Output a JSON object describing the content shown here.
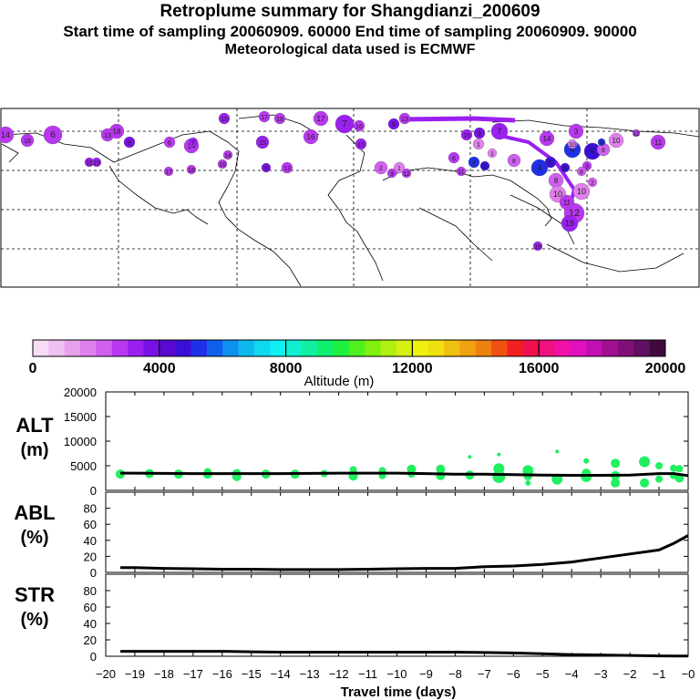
{
  "header": {
    "title": "Retroplume summary for Shangdianzi_200609",
    "sampling_line": "Start time of sampling 20060909. 60000     End time of sampling 20060909. 90000",
    "met_line": "Meteorological data used is ECMWF"
  },
  "colorbar": {
    "label": "Altitude (m)",
    "ticks": [
      "0",
      "4000",
      "8000",
      "12000",
      "16000",
      "20000"
    ],
    "colors": [
      "#f6dcf6",
      "#f0c0f0",
      "#e8a0ec",
      "#e080ec",
      "#d060f0",
      "#b838f0",
      "#9a20f0",
      "#7a10e8",
      "#5a0ad0",
      "#3a10d8",
      "#2030e8",
      "#1060f0",
      "#1090f0",
      "#10b8f0",
      "#10d8f0",
      "#10f0f0",
      "#10f0d0",
      "#10f0a0",
      "#10f070",
      "#20f040",
      "#50f020",
      "#80f010",
      "#b0f010",
      "#d8f010",
      "#f0f010",
      "#f0e010",
      "#f0c010",
      "#f0a010",
      "#f08010",
      "#f05010",
      "#f02020",
      "#f01050",
      "#f01080",
      "#f010a8",
      "#e010c0",
      "#c010b0",
      "#a01090",
      "#801078",
      "#601060",
      "#400a40"
    ]
  },
  "map_labels": [
    {
      "text": "14",
      "color": "#b838f0"
    },
    {
      "text": "16",
      "color": "#b838f0"
    },
    {
      "text": "18",
      "color": "#b838f0"
    },
    {
      "text": "17",
      "color": "#b838f0"
    },
    {
      "text": "15",
      "color": "#9a20f0"
    },
    {
      "text": "9",
      "color": "#7a10e8"
    },
    {
      "text": "13",
      "color": "#b838f0"
    },
    {
      "text": "6",
      "color": "#b838f0"
    },
    {
      "text": "7",
      "color": "#9a20f0"
    },
    {
      "text": "1",
      "color": "#e080ec"
    },
    {
      "text": "2",
      "color": "#d060f0"
    },
    {
      "text": "3",
      "color": "#b838f0"
    },
    {
      "text": "4",
      "color": "#2030e8"
    },
    {
      "text": "5",
      "color": "#3a10d8"
    },
    {
      "text": "8",
      "color": "#d060f0"
    },
    {
      "text": "10",
      "color": "#e080ec"
    },
    {
      "text": "11",
      "color": "#b838f0"
    },
    {
      "text": "12",
      "color": "#b838f0"
    },
    {
      "text": "19",
      "color": "#9a20f0"
    }
  ],
  "chart_data": [
    {
      "type": "scatter",
      "panel": "ALT",
      "ylabel": "ALT",
      "yunit": "(m)",
      "xlim": [
        -20,
        0
      ],
      "ylim": [
        0,
        20000
      ],
      "yticks": [
        "20000",
        "15000",
        "10000",
        "5000",
        "0"
      ],
      "mean_line": {
        "x": [
          -19.5,
          -19,
          -18,
          -17,
          -16,
          -15,
          -14,
          -13,
          -12,
          -11,
          -10,
          -9,
          -8,
          -7,
          -6,
          -5,
          -4,
          -3,
          -2,
          -1,
          -0.5,
          0
        ],
        "y": [
          3500,
          3500,
          3450,
          3400,
          3400,
          3400,
          3400,
          3450,
          3500,
          3500,
          3500,
          3400,
          3300,
          3300,
          3200,
          3100,
          3050,
          3050,
          3100,
          3400,
          3400,
          3000
        ]
      },
      "points": [
        {
          "x": -19.5,
          "y": 3300,
          "s": 5
        },
        {
          "x": -18.5,
          "y": 3400,
          "s": 5
        },
        {
          "x": -17.5,
          "y": 3300,
          "s": 5
        },
        {
          "x": -16.5,
          "y": 3800,
          "s": 4
        },
        {
          "x": -16.5,
          "y": 3300,
          "s": 5
        },
        {
          "x": -15.5,
          "y": 3400,
          "s": 5
        },
        {
          "x": -15.5,
          "y": 2800,
          "s": 5
        },
        {
          "x": -14.5,
          "y": 3300,
          "s": 5
        },
        {
          "x": -13.5,
          "y": 3300,
          "s": 5
        },
        {
          "x": -12.5,
          "y": 3400,
          "s": 4
        },
        {
          "x": -11.5,
          "y": 4200,
          "s": 4
        },
        {
          "x": -11.5,
          "y": 2900,
          "s": 5
        },
        {
          "x": -10.5,
          "y": 4000,
          "s": 4
        },
        {
          "x": -10.5,
          "y": 3000,
          "s": 4
        },
        {
          "x": -9.5,
          "y": 4300,
          "s": 5
        },
        {
          "x": -9.5,
          "y": 3300,
          "s": 4
        },
        {
          "x": -8.5,
          "y": 4300,
          "s": 5
        },
        {
          "x": -8.5,
          "y": 3000,
          "s": 5
        },
        {
          "x": -7.5,
          "y": 6800,
          "s": 2
        },
        {
          "x": -7.5,
          "y": 3100,
          "s": 5
        },
        {
          "x": -6.5,
          "y": 7300,
          "s": 2
        },
        {
          "x": -6.5,
          "y": 4400,
          "s": 6
        },
        {
          "x": -6.5,
          "y": 2800,
          "s": 7
        },
        {
          "x": -5.5,
          "y": 4000,
          "s": 6
        },
        {
          "x": -5.5,
          "y": 3000,
          "s": 5
        },
        {
          "x": -5.5,
          "y": 1500,
          "s": 3
        },
        {
          "x": -4.5,
          "y": 7900,
          "s": 2
        },
        {
          "x": -4.5,
          "y": 2300,
          "s": 6
        },
        {
          "x": -3.5,
          "y": 6000,
          "s": 3
        },
        {
          "x": -3.5,
          "y": 3500,
          "s": 5
        },
        {
          "x": -3.5,
          "y": 2800,
          "s": 6
        },
        {
          "x": -2.5,
          "y": 5500,
          "s": 5
        },
        {
          "x": -2.5,
          "y": 3000,
          "s": 5
        },
        {
          "x": -2.5,
          "y": 1500,
          "s": 5
        },
        {
          "x": -1.5,
          "y": 5800,
          "s": 6
        },
        {
          "x": -1.5,
          "y": 1500,
          "s": 5
        },
        {
          "x": -1,
          "y": 5000,
          "s": 4
        },
        {
          "x": -1,
          "y": 2300,
          "s": 4
        },
        {
          "x": -0.5,
          "y": 4500,
          "s": 4
        },
        {
          "x": -0.5,
          "y": 3000,
          "s": 4
        },
        {
          "x": -0.3,
          "y": 4400,
          "s": 4
        },
        {
          "x": -0.3,
          "y": 2500,
          "s": 5
        }
      ]
    },
    {
      "type": "line",
      "panel": "ABL",
      "ylabel": "ABL",
      "yunit": "(%)",
      "xlim": [
        -20,
        0
      ],
      "ylim": [
        0,
        100
      ],
      "yticks": [
        "80",
        "60",
        "40",
        "20",
        "0"
      ],
      "x": [
        -19.5,
        -19,
        -18,
        -17,
        -16,
        -15,
        -14,
        -13,
        -12,
        -11,
        -10,
        -9,
        -8,
        -7,
        -6,
        -5,
        -4,
        -3,
        -2,
        -1,
        -0.5,
        0
      ],
      "y": [
        6,
        6,
        5,
        4.5,
        4,
        4,
        3.5,
        3.5,
        3.5,
        4,
        4.5,
        5,
        5,
        7,
        8,
        10,
        13,
        18,
        23,
        28,
        36,
        46
      ]
    },
    {
      "type": "line",
      "panel": "STR",
      "ylabel": "STR",
      "yunit": "(%)",
      "xlim": [
        -20,
        0
      ],
      "ylim": [
        0,
        100
      ],
      "yticks": [
        "80",
        "60",
        "40",
        "20",
        "0"
      ],
      "x": [
        -19.5,
        -19,
        -18,
        -17,
        -16,
        -15,
        -14,
        -13,
        -12,
        -11,
        -10,
        -9,
        -8,
        -7,
        -6,
        -5,
        -4,
        -3,
        -2,
        -1,
        -0.5,
        0
      ],
      "y": [
        6,
        6,
        6,
        6,
        6,
        5.5,
        5,
        5,
        5,
        5,
        5,
        5,
        5,
        4.5,
        4,
        3,
        2,
        1.5,
        1,
        0.5,
        0.3,
        0.2
      ]
    }
  ],
  "x_axis": {
    "tick_labels": [
      "−20",
      "−19",
      "−18",
      "−17",
      "−16",
      "−15",
      "−14",
      "−13",
      "−12",
      "−11",
      "−10",
      "−9",
      "−8",
      "−7",
      "−6",
      "−5",
      "−4",
      "−3",
      "−2",
      "−1",
      "−0"
    ],
    "label": "Travel time (days)"
  }
}
